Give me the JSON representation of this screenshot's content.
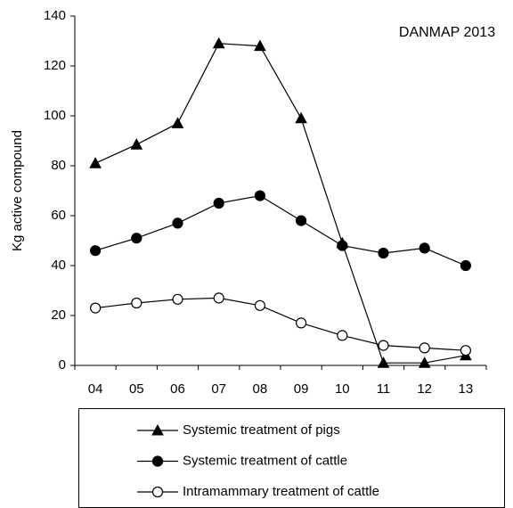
{
  "chart_data": {
    "type": "line",
    "ylabel": "Kg active compound",
    "annotation": "DANMAP 2013",
    "categories": [
      "04",
      "05",
      "06",
      "07",
      "08",
      "09",
      "10",
      "11",
      "12",
      "13"
    ],
    "series": [
      {
        "name": "Systemic treatment of pigs",
        "color": "#000000",
        "marker": "triangle",
        "marker_fill": "#000000",
        "values": [
          81,
          88.5,
          97,
          129,
          128,
          99,
          49,
          1,
          1,
          4
        ]
      },
      {
        "name": "Systemic treatment of cattle",
        "color": "#000000",
        "marker": "circle",
        "marker_fill": "#000000",
        "values": [
          46,
          51,
          57,
          65,
          68,
          58,
          48,
          45,
          47,
          40
        ]
      },
      {
        "name": "Intramammary treatment of cattle",
        "color": "#000000",
        "marker": "circle",
        "marker_fill": "#ffffff",
        "values": [
          23,
          25,
          26.5,
          27,
          24,
          17,
          12,
          8,
          7,
          6
        ]
      }
    ],
    "ylim": [
      0,
      140
    ],
    "yticks": [
      0,
      20,
      40,
      60,
      80,
      100,
      120,
      140
    ],
    "grid": false
  }
}
